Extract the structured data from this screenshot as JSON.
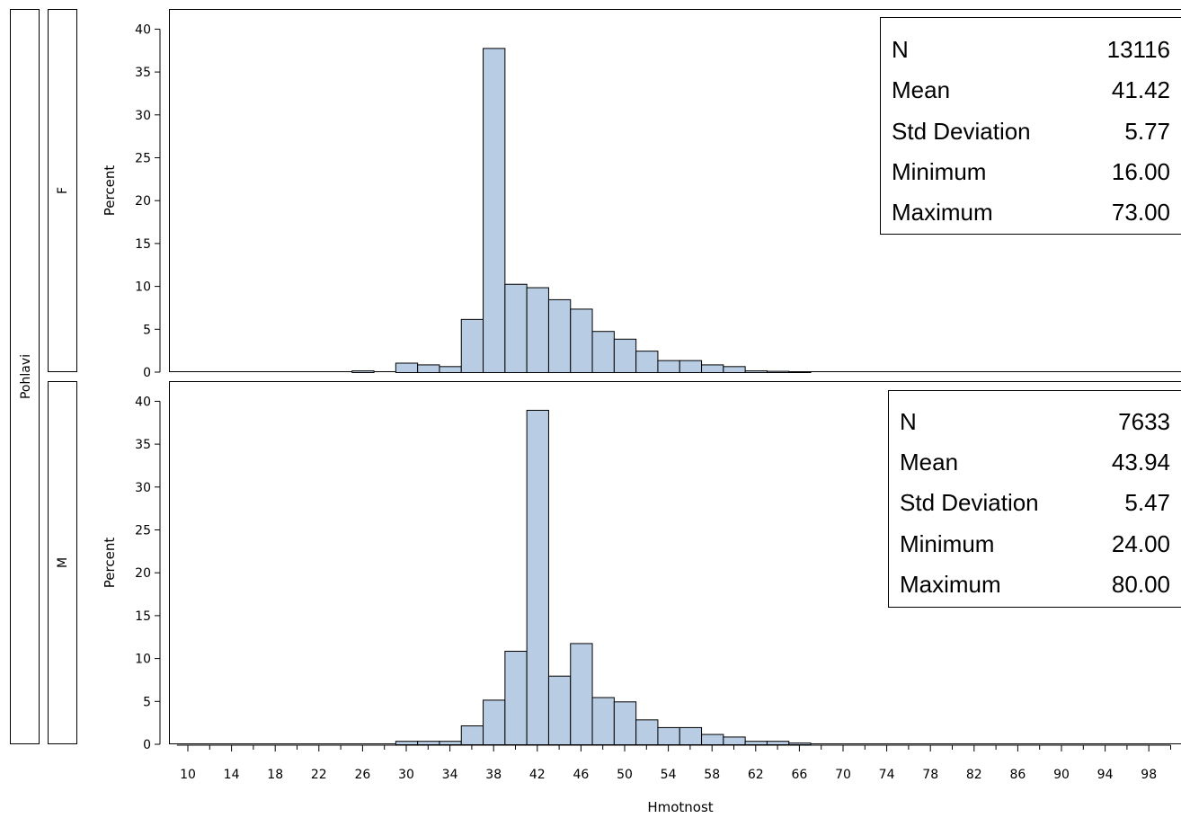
{
  "chart_data": {
    "type": "bar",
    "row_header": "Pohlavi",
    "xlabel": "Hmotnost",
    "ylabel": "Percent",
    "xlim": [
      9,
      100
    ],
    "ylim": [
      0,
      42
    ],
    "bin_width": 2,
    "x_ticks": [
      "10",
      "14",
      "18",
      "22",
      "26",
      "30",
      "34",
      "38",
      "42",
      "46",
      "50",
      "54",
      "58",
      "62",
      "66",
      "70",
      "74",
      "78",
      "82",
      "86",
      "90",
      "94",
      "98"
    ],
    "y_ticks": [
      "0",
      "5",
      "10",
      "15",
      "20",
      "25",
      "30",
      "35",
      "40"
    ],
    "panels": [
      {
        "group": "F",
        "bins": [
          {
            "x": 26,
            "y": 0.2
          },
          {
            "x": 30,
            "y": 1.1
          },
          {
            "x": 32,
            "y": 0.9
          },
          {
            "x": 34,
            "y": 0.7
          },
          {
            "x": 36,
            "y": 6.2
          },
          {
            "x": 38,
            "y": 37.8
          },
          {
            "x": 40,
            "y": 10.3
          },
          {
            "x": 42,
            "y": 9.9
          },
          {
            "x": 44,
            "y": 8.5
          },
          {
            "x": 46,
            "y": 7.4
          },
          {
            "x": 48,
            "y": 4.8
          },
          {
            "x": 50,
            "y": 3.9
          },
          {
            "x": 52,
            "y": 2.5
          },
          {
            "x": 54,
            "y": 1.4
          },
          {
            "x": 56,
            "y": 1.4
          },
          {
            "x": 58,
            "y": 0.9
          },
          {
            "x": 60,
            "y": 0.7
          },
          {
            "x": 62,
            "y": 0.2
          },
          {
            "x": 64,
            "y": 0.15
          },
          {
            "x": 66,
            "y": 0.1
          }
        ],
        "stats": [
          {
            "label": "N",
            "value": "13116"
          },
          {
            "label": "Mean",
            "value": "41.42"
          },
          {
            "label": "Std Deviation",
            "value": "5.77"
          },
          {
            "label": "Minimum",
            "value": "16.00"
          },
          {
            "label": "Maximum",
            "value": "73.00"
          }
        ]
      },
      {
        "group": "M",
        "bins": [
          {
            "x": 30,
            "y": 0.4
          },
          {
            "x": 32,
            "y": 0.4
          },
          {
            "x": 34,
            "y": 0.4
          },
          {
            "x": 36,
            "y": 2.2
          },
          {
            "x": 38,
            "y": 5.2
          },
          {
            "x": 40,
            "y": 10.9
          },
          {
            "x": 42,
            "y": 39.0
          },
          {
            "x": 44,
            "y": 8.0
          },
          {
            "x": 46,
            "y": 11.8
          },
          {
            "x": 48,
            "y": 5.5
          },
          {
            "x": 50,
            "y": 5.0
          },
          {
            "x": 52,
            "y": 2.9
          },
          {
            "x": 54,
            "y": 2.0
          },
          {
            "x": 56,
            "y": 2.0
          },
          {
            "x": 58,
            "y": 1.2
          },
          {
            "x": 60,
            "y": 0.9
          },
          {
            "x": 62,
            "y": 0.4
          },
          {
            "x": 64,
            "y": 0.4
          },
          {
            "x": 66,
            "y": 0.2
          }
        ],
        "stats": [
          {
            "label": "N",
            "value": "7633"
          },
          {
            "label": "Mean",
            "value": "43.94"
          },
          {
            "label": "Std Deviation",
            "value": "5.47"
          },
          {
            "label": "Minimum",
            "value": "24.00"
          },
          {
            "label": "Maximum",
            "value": "80.00"
          }
        ]
      }
    ],
    "colors": {
      "bar_fill": "#b8cce4",
      "bar_edge": "#000000",
      "frame": "#000000"
    }
  }
}
